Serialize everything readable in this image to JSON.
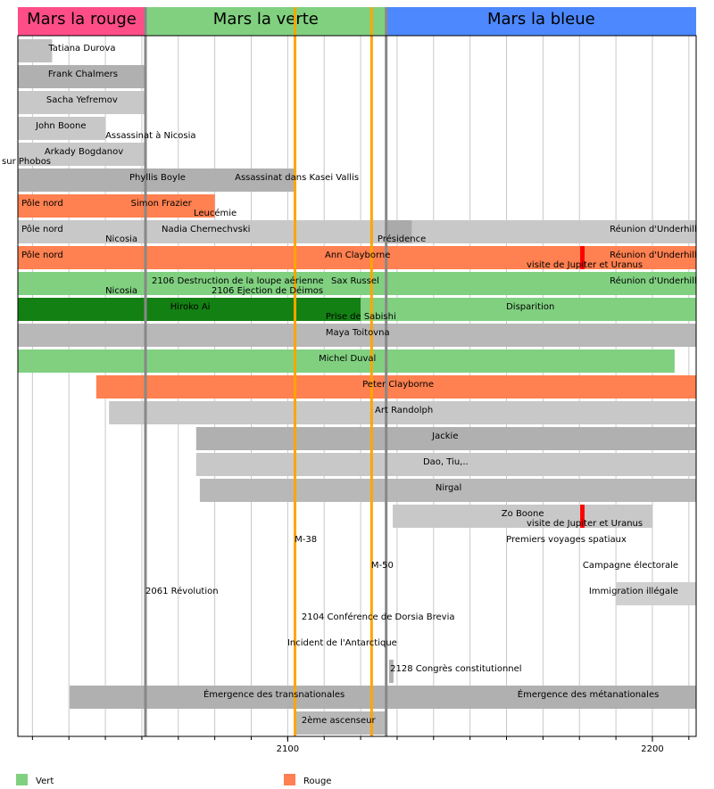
{
  "chart_data": {
    "type": "timeline",
    "xlim": [
      2026,
      2212
    ],
    "xticks": [
      2100,
      2200
    ],
    "xminorticks": [
      2030,
      2040,
      2050,
      2060,
      2070,
      2080,
      2090,
      2100,
      2110,
      2120,
      2130,
      2140,
      2150,
      2160,
      2170,
      2180,
      2190,
      2200,
      2210
    ],
    "grid": true,
    "eras": [
      {
        "name": "Mars la rouge",
        "start": 2026,
        "end": 2061,
        "color": "#ff4d88"
      },
      {
        "name": "Mars la verte",
        "start": 2061,
        "end": 2127,
        "color": "#80d080"
      },
      {
        "name": "Mars la bleue",
        "start": 2127,
        "end": 2212,
        "color": "#4d88ff"
      }
    ],
    "markers": [
      {
        "year": 2061,
        "color": "#888888"
      },
      {
        "year": 2127,
        "color": "#888888"
      },
      {
        "year": 2102,
        "color": "#ffa500"
      },
      {
        "year": 2123,
        "color": "#ffa500"
      }
    ],
    "rows": [
      {
        "bars": [
          {
            "start": 2026,
            "end": 2035.4,
            "color": "#c0c0c0"
          }
        ],
        "labels": [
          {
            "text": "Tatiana Durova",
            "year": 2034.4
          }
        ],
        "events": []
      },
      {
        "bars": [
          {
            "start": 2026,
            "end": 2061,
            "color": "#b0b0b0"
          }
        ],
        "labels": [
          {
            "text": "Frank Chalmers",
            "year": 2034.3
          }
        ],
        "events": []
      },
      {
        "bars": [
          {
            "start": 2026,
            "end": 2061,
            "color": "#c8c8c8"
          }
        ],
        "labels": [
          {
            "text": "Sacha Yefremov",
            "year": 2033.8
          }
        ],
        "events": []
      },
      {
        "bars": [
          {
            "start": 2026,
            "end": 2050,
            "color": "#c8c8c8"
          }
        ],
        "labels": [
          {
            "text": "John Boone",
            "year": 2030.9
          }
        ],
        "events": [
          {
            "text": "Assassinat à Nicosia",
            "year": 2050
          }
        ]
      },
      {
        "bars": [
          {
            "start": 2026,
            "end": 2061,
            "color": "#c8c8c8"
          }
        ],
        "labels": [
          {
            "text": "Arkady Bogdanov",
            "year": 2033.3
          }
        ],
        "events": [
          {
            "text": "sur Phobos",
            "year": 2021.6
          }
        ]
      },
      {
        "bars": [
          {
            "start": 2026,
            "end": 2101.9,
            "color": "#b0b0b0"
          }
        ],
        "labels": [
          {
            "text": "Phyllis Boyle",
            "year": 2056.6
          },
          {
            "text": "Assassinat dans Kasei Vallis",
            "year": 2085.5
          }
        ],
        "events": []
      },
      {
        "bars": [
          {
            "start": 2026,
            "end": 2080,
            "color": "#ff8050"
          }
        ],
        "labels": [
          {
            "text": "Pôle nord",
            "year": 2027
          },
          {
            "text": "Simon Frazier",
            "year": 2057
          }
        ],
        "events": [
          {
            "text": "Leucémie",
            "year": 2074.2,
            "color": "#0000cc"
          }
        ]
      },
      {
        "bars": [
          {
            "start": 2026,
            "end": 2212,
            "color": "#c8c8c8"
          },
          {
            "start": 2127,
            "end": 2134,
            "color": "#aaaaaa"
          }
        ],
        "labels": [
          {
            "text": "Pôle nord",
            "year": 2027
          },
          {
            "text": "Nadia Chernechvski",
            "year": 2065.4
          },
          {
            "text": "Réunion d'Underhill",
            "year": 2188.3
          }
        ],
        "events": [
          {
            "text": "Nicosia",
            "year": 2050
          },
          {
            "text": "Présidence",
            "year": 2124.6
          }
        ]
      },
      {
        "bars": [
          {
            "start": 2026,
            "end": 2212,
            "color": "#ff8050"
          },
          {
            "start": 2180.2,
            "end": 2181.4,
            "color": "#ff0000"
          }
        ],
        "labels": [
          {
            "text": "Pôle nord",
            "year": 2027
          },
          {
            "text": "Ann Clayborne",
            "year": 2110.2
          },
          {
            "text": "Réunion d'Underhill",
            "year": 2188.3
          }
        ],
        "events": [
          {
            "text": "visite de Jupiter et Uranus",
            "year": 2165.5
          }
        ]
      },
      {
        "bars": [
          {
            "start": 2026,
            "end": 2212,
            "color": "#80d080"
          }
        ],
        "labels": [
          {
            "text": "2106 Destruction de la loupe aérienne",
            "year": 2062.7
          },
          {
            "text": "Sax Russel",
            "year": 2111.9
          },
          {
            "text": "Réunion d'Underhill",
            "year": 2188.3
          }
        ],
        "events": [
          {
            "text": "Nicosia",
            "year": 2050
          },
          {
            "text": "2106 Ejection de Déimos",
            "year": 2079.1,
            "color": "#0000cc"
          }
        ]
      },
      {
        "bars": [
          {
            "start": 2026,
            "end": 2120,
            "color": "#138013"
          },
          {
            "start": 2120,
            "end": 2212,
            "color": "#80d080"
          }
        ],
        "labels": [
          {
            "text": "Hiroko Ai",
            "year": 2067.8
          },
          {
            "text": "Disparition",
            "year": 2159.9
          }
        ],
        "events": [
          {
            "text": "Prise de Sabishi",
            "year": 2110.4
          }
        ]
      },
      {
        "bars": [
          {
            "start": 2026,
            "end": 2212,
            "color": "#b8b8b8"
          }
        ],
        "labels": [
          {
            "text": "Maya Toitovna",
            "year": 2110.4
          }
        ],
        "events": []
      },
      {
        "bars": [
          {
            "start": 2026,
            "end": 2206.1,
            "color": "#80d080"
          }
        ],
        "labels": [
          {
            "text": "Michel Duval",
            "year": 2108.5
          }
        ],
        "events": []
      },
      {
        "bars": [
          {
            "start": 2047.5,
            "end": 2212,
            "color": "#ff8050"
          }
        ],
        "labels": [
          {
            "text": "Peter Clayborne",
            "year": 2120.5
          }
        ],
        "events": []
      },
      {
        "bars": [
          {
            "start": 2051,
            "end": 2212,
            "color": "#c8c8c8"
          }
        ],
        "labels": [
          {
            "text": "Art Randolph",
            "year": 2123.9
          }
        ],
        "events": []
      },
      {
        "bars": [
          {
            "start": 2074.9,
            "end": 2212,
            "color": "#b0b0b0"
          }
        ],
        "labels": [
          {
            "text": "Jackie",
            "year": 2139.6
          }
        ],
        "events": []
      },
      {
        "bars": [
          {
            "start": 2074.9,
            "end": 2212,
            "color": "#c8c8c8"
          }
        ],
        "labels": [
          {
            "text": "Dao, Tiu,..",
            "year": 2137.1
          }
        ],
        "events": []
      },
      {
        "bars": [
          {
            "start": 2075.9,
            "end": 2212,
            "color": "#b8b8b8"
          }
        ],
        "labels": [
          {
            "text": "Nirgal",
            "year": 2140.5
          }
        ],
        "events": []
      },
      {
        "bars": [
          {
            "start": 2128.8,
            "end": 2200,
            "color": "#c8c8c8"
          },
          {
            "start": 2180.2,
            "end": 2181.4,
            "color": "#ff0000"
          }
        ],
        "labels": [
          {
            "text": "Zo Boone",
            "year": 2158.6
          }
        ],
        "events": [
          {
            "text": "visite de Jupiter et Uranus",
            "year": 2165.5
          }
        ]
      },
      {
        "bars": [],
        "labels": [
          {
            "text": "M-38",
            "year": 2101.9
          },
          {
            "text": "Premiers voyages spatiaux",
            "year": 2159.9
          }
        ],
        "events": []
      },
      {
        "bars": [],
        "labels": [
          {
            "text": "M-50",
            "year": 2122.9
          },
          {
            "text": "Campagne électorale",
            "year": 2180.9
          }
        ],
        "events": []
      },
      {
        "bars": [
          {
            "start": 2190,
            "end": 2212,
            "color": "#d0d0d0"
          }
        ],
        "labels": [
          {
            "text": "2061 Révolution",
            "year": 2061
          },
          {
            "text": "Immigration illégale",
            "year": 2182.6
          }
        ],
        "events": []
      },
      {
        "bars": [],
        "labels": [
          {
            "text": "2104 Conférence de Dorsia Brevia",
            "year": 2103.8
          }
        ],
        "events": []
      },
      {
        "bars": [],
        "labels": [
          {
            "text": "Incident de l'Antarctique",
            "year": 2099.9
          }
        ],
        "events": []
      },
      {
        "bars": [
          {
            "start": 2127.8,
            "end": 2129,
            "color": "#b0b0b0"
          }
        ],
        "labels": [
          {
            "text": "2128 Congrès constitutionnel",
            "year": 2128.1
          }
        ],
        "events": []
      },
      {
        "bars": [
          {
            "start": 2040.2,
            "end": 2212,
            "color": "#b0b0b0"
          }
        ],
        "labels": [
          {
            "text": "Émergence des transnationales",
            "year": 2076.9
          },
          {
            "text": "Émergence des métanationales",
            "year": 2163
          }
        ],
        "events": []
      },
      {
        "bars": [
          {
            "start": 2101.9,
            "end": 2126.8,
            "color": "#b8b8b8"
          }
        ],
        "labels": [
          {
            "text": "2ème ascenseur",
            "year": 2103.8
          }
        ],
        "events": []
      }
    ],
    "legend": [
      {
        "name": "Vert",
        "color": "#80d080"
      },
      {
        "name": "Rouge",
        "color": "#ff8050"
      }
    ]
  }
}
